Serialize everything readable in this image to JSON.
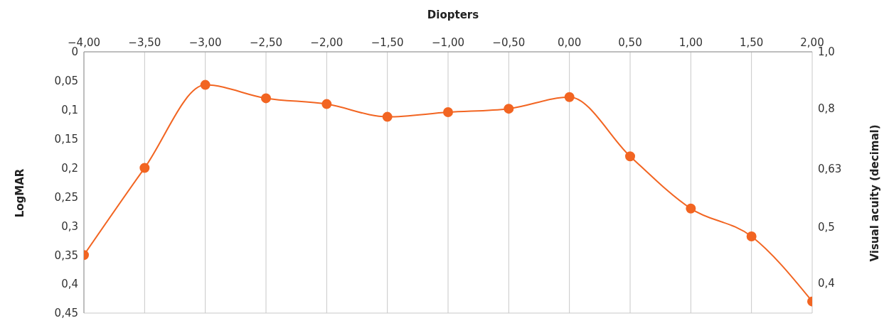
{
  "chart_data": {
    "type": "line",
    "xlabel": "Diopters",
    "ylabel": "LogMAR",
    "y2label": "Visual acuity (decimal)",
    "x": [
      -4,
      -3.5,
      -3,
      -2.5,
      -2,
      -1.5,
      -1,
      -0.5,
      0,
      0.5,
      1,
      1.5,
      2
    ],
    "series": [
      {
        "color": "#f26522",
        "values": [
          0.35,
          0.2,
          0.057,
          0.08,
          0.09,
          0.112,
          0.104,
          0.098,
          0.078,
          0.18,
          0.27,
          0.318,
          0.43
        ]
      }
    ],
    "xlim": [
      -4,
      2
    ],
    "xticks": [
      {
        "value": -4,
        "label": "−4,00"
      },
      {
        "value": -3.5,
        "label": "−3,50"
      },
      {
        "value": -3,
        "label": "−3,00"
      },
      {
        "value": -2.5,
        "label": "−2,50"
      },
      {
        "value": -2,
        "label": "−2,00"
      },
      {
        "value": -1.5,
        "label": "−1,50"
      },
      {
        "value": -1,
        "label": "−1,00"
      },
      {
        "value": -0.5,
        "label": "−0,50"
      },
      {
        "value": 0,
        "label": "0,00"
      },
      {
        "value": 0.5,
        "label": "0,50"
      },
      {
        "value": 1,
        "label": "1,00"
      },
      {
        "value": 1.5,
        "label": "1,50"
      },
      {
        "value": 2,
        "label": "2,00"
      }
    ],
    "ylim": [
      0.45,
      0
    ],
    "yticks": [
      0,
      {
        "value": 0.05,
        "label": "0,05"
      },
      {
        "value": 0.1,
        "label": "0,1"
      },
      {
        "value": 0.15,
        "label": "0,15"
      },
      {
        "value": 0.2,
        "label": "0,2"
      },
      {
        "value": 0.25,
        "label": "0,25"
      },
      {
        "value": 0.3,
        "label": "0,3"
      },
      {
        "value": 0.35,
        "label": "0,35"
      },
      {
        "value": 0.4,
        "label": "0,4"
      },
      {
        "value": 0.45,
        "label": "0,45"
      }
    ],
    "y2lim": [
      0.355,
      1
    ],
    "y2ticks": [
      {
        "value": 0.4,
        "label": "0,4"
      },
      {
        "value": 0.5,
        "label": "0,5"
      },
      {
        "value": 0.63,
        "label": "0,63"
      },
      {
        "value": 0.8,
        "label": "0,8"
      },
      {
        "value": 1,
        "label": "1,0"
      }
    ],
    "log": "y2",
    "grid": true,
    "marker": "circle",
    "line_style": "solid",
    "legend": false
  }
}
